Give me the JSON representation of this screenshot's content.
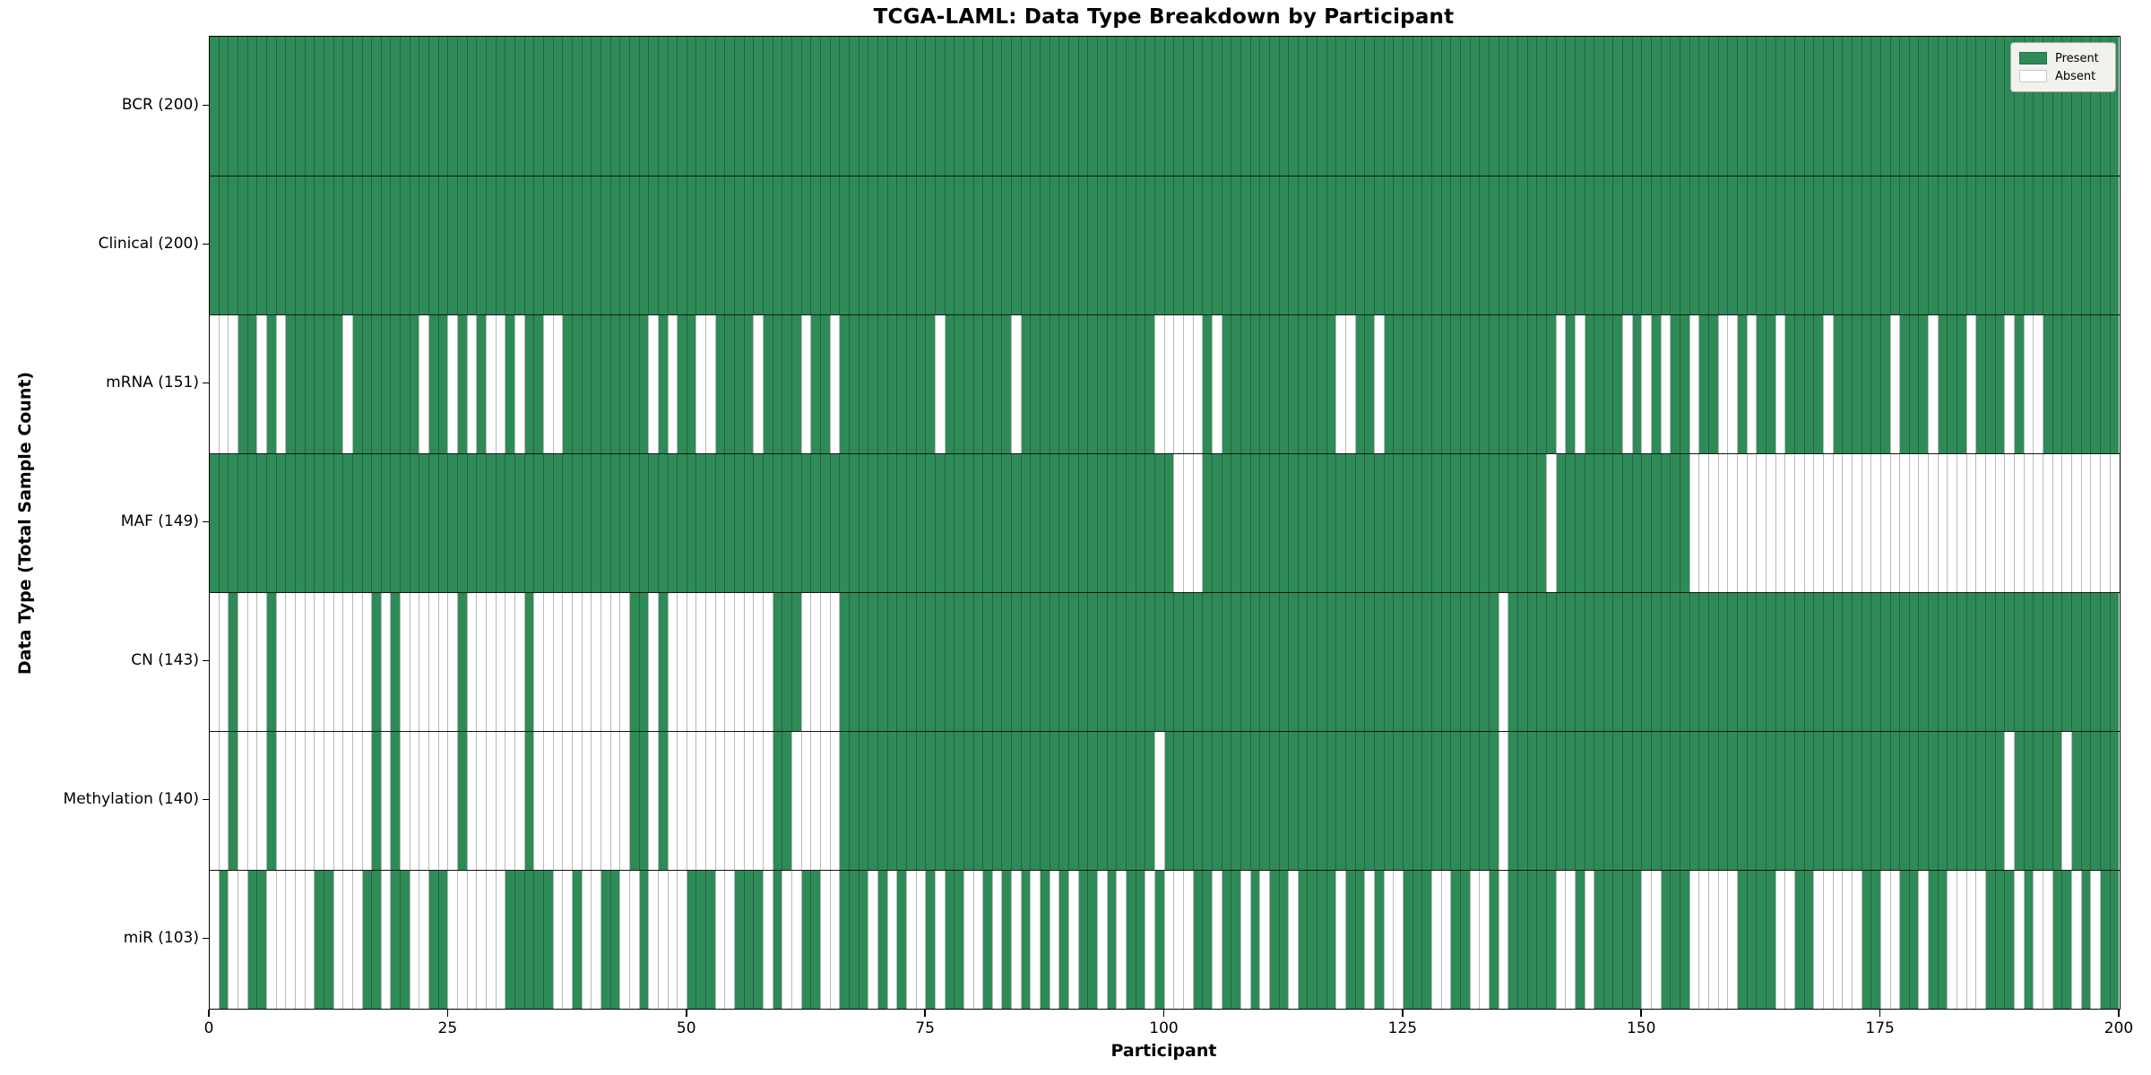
{
  "title": "TCGA-LAML: Data Type Breakdown by Participant",
  "axes": {
    "x_label": "Participant",
    "y_label": "Data Type (Total Sample Count)"
  },
  "legend": {
    "entries": [
      {
        "label": "Present",
        "color": "#2e8b57"
      },
      {
        "label": "Absent",
        "color": "#ffffff"
      }
    ],
    "position": "upper right"
  },
  "colors": {
    "present": "#2e8b57",
    "absent": "#ffffff",
    "cell_edge_on_green": "#226343",
    "cell_edge_on_white": "#b9b9b9",
    "row_separator": "#141414",
    "plot_border": "#000000",
    "legend_background": "#f1f2ee"
  },
  "chart_data": {
    "type": "heatmap",
    "title": "TCGA-LAML: Data Type Breakdown by Participant",
    "xlabel": "Participant",
    "ylabel": "Data Type (Total Sample Count)",
    "x_axis": {
      "min": 0,
      "max": 200,
      "ticks": [
        0,
        25,
        50,
        75,
        100,
        125,
        150,
        175,
        200
      ],
      "tick_labels": [
        "0",
        "25",
        "50",
        "75",
        "100",
        "125",
        "150",
        "175",
        "200"
      ],
      "n_participants": 200
    },
    "value_encoding": "Each pattern string has 200 chars, one per participant (index 0-199): 1 = Present (green), 0 = Absent (white)",
    "grid": "off",
    "legend_entries": [
      "Present",
      "Absent"
    ],
    "rows": [
      {
        "label": "BCR (200)",
        "data_type": "BCR",
        "present_count": 200,
        "pattern": "11111111111111111111111111111111111111111111111111111111111111111111111111111111111111111111111111111111111111111111111111111111111111111111111111111111111111111111111111111111111111111111111111111111"
      },
      {
        "label": "Clinical (200)",
        "data_type": "Clinical",
        "present_count": 200,
        "pattern": "11111111111111111111111111111111111111111111111111111111111111111111111111111111111111111111111111111111111111111111111111111111111111111111111111111111111111111111111111111111111111111111111111111111"
      },
      {
        "label": "mRNA (151)",
        "data_type": "mRNA",
        "present_count": 151,
        "pattern": "00011010111111011111110110101001011001111111110101100111101111011011111111110111111101111111111111100000101111111111110011011111111111111111101011110101011011001011011110111111011101110111010011111111"
      },
      {
        "label": "MAF (149)",
        "data_type": "MAF",
        "present_count": 149,
        "pattern": "11111111111111111111111111111111111111111111111111111111111111111111111111111111111111111111111111111000111111111111111111111111111111111111011111111111111000000000000000000000000000000000000000000000"
      },
      {
        "label": "CN (143)",
        "data_type": "CN",
        "present_count": 143,
        "pattern": "00100010000000000101000000100000010000000000110100000000000111000011111111111111111111111111111111111111111111111111111111111111111111101111111111111111111111111111111111111111111111111111111111111111"
      },
      {
        "label": "Methylation (140)",
        "data_type": "Methylation",
        "present_count": 140,
        "pattern": "00100010000000000101000000100000010000000000110100000000000110000011111111111111111111111111111111101111111111111111111111111111111111101111111111111111111111111111111111111111111111111111011111011111"
      },
      {
        "label": "miR (103)",
        "data_type": "miR",
        "present_count": 103,
        "pattern": "01001100000110001101100110000001111100100110010000111001110100110011101010010110010101010101101011010001101101011011110110100111001100101111100101111100111000001111001100000110011011000011101001101011"
      }
    ]
  }
}
